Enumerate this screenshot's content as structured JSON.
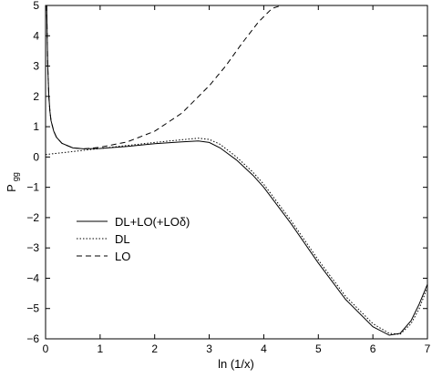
{
  "chart_data": {
    "type": "line",
    "xlabel": "ln (1/x)",
    "ylabel": "P",
    "ylabel_sub": "gg",
    "xlim": [
      0,
      7
    ],
    "ylim": [
      -6,
      5
    ],
    "x_ticks": [
      0,
      1,
      2,
      3,
      4,
      5,
      6,
      7
    ],
    "y_ticks": [
      -6,
      -5,
      -4,
      -3,
      -2,
      -1,
      0,
      1,
      2,
      3,
      4,
      5
    ],
    "grid": false,
    "legend_position": "center-left",
    "series": [
      {
        "name": "DL+LO(+LOδ)",
        "style": "solid",
        "color": "#000000",
        "x": [
          0.02,
          0.04,
          0.06,
          0.08,
          0.1,
          0.15,
          0.2,
          0.3,
          0.5,
          0.7,
          1.0,
          1.5,
          2.0,
          2.5,
          2.8,
          3.0,
          3.2,
          3.5,
          3.8,
          4.0,
          4.5,
          5.0,
          5.5,
          6.0,
          6.3,
          6.5,
          6.7,
          6.85,
          7.0
        ],
        "y": [
          5.0,
          3.0,
          2.0,
          1.5,
          1.2,
          0.85,
          0.65,
          0.45,
          0.3,
          0.27,
          0.28,
          0.35,
          0.44,
          0.5,
          0.53,
          0.48,
          0.3,
          -0.1,
          -0.6,
          -1.0,
          -2.2,
          -3.5,
          -4.7,
          -5.6,
          -5.88,
          -5.82,
          -5.4,
          -4.85,
          -4.2
        ]
      },
      {
        "name": "DL",
        "style": "dotted",
        "color": "#000000",
        "x": [
          0.0,
          0.5,
          1.0,
          1.5,
          2.0,
          2.5,
          2.8,
          3.0,
          3.2,
          3.5,
          3.8,
          4.0,
          4.5,
          5.0,
          5.5,
          6.0,
          6.3,
          6.5,
          6.7,
          6.85,
          7.0
        ],
        "y": [
          0.08,
          0.18,
          0.28,
          0.38,
          0.48,
          0.57,
          0.62,
          0.58,
          0.42,
          0.0,
          -0.5,
          -0.9,
          -2.1,
          -3.4,
          -4.6,
          -5.5,
          -5.82,
          -5.85,
          -5.5,
          -5.0,
          -4.3
        ]
      },
      {
        "name": "LO",
        "style": "dashed",
        "color": "#000000",
        "x": [
          0.02,
          0.04,
          0.06,
          0.08,
          0.1,
          0.15,
          0.2,
          0.3,
          0.5,
          0.7,
          1.0,
          1.5,
          2.0,
          2.5,
          3.0,
          3.3,
          3.6,
          3.9,
          4.15,
          4.32
        ],
        "y": [
          5.0,
          3.0,
          2.0,
          1.5,
          1.2,
          0.85,
          0.65,
          0.45,
          0.3,
          0.27,
          0.32,
          0.5,
          0.85,
          1.45,
          2.35,
          3.0,
          3.75,
          4.45,
          4.9,
          5.0
        ]
      }
    ]
  }
}
